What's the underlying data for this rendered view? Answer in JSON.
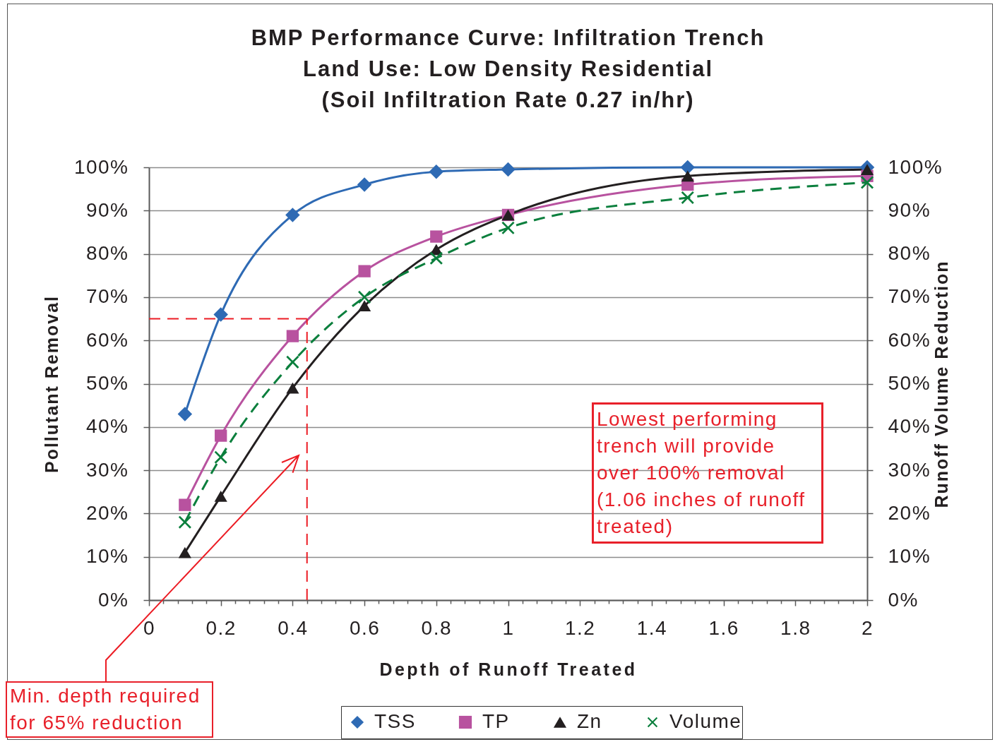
{
  "chart_data": {
    "type": "line",
    "title": "BMP Performance Curve: Infiltration Trench\nLand Use: Low Density Residential\n(Soil Infiltration Rate 0.27 in/hr)",
    "xlabel": "Depth of Runoff Treated",
    "ylabel": "Pollutant Removal",
    "y2label": "Runoff Volume Reduction",
    "x": [
      0.1,
      0.2,
      0.4,
      0.6,
      0.8,
      1,
      1.5,
      2
    ],
    "xlim": [
      0,
      2
    ],
    "xticks": [
      0,
      {
        "value": 0.04,
        "label": null
      },
      {
        "value": 0.08,
        "label": null
      },
      {
        "value": 0.12,
        "label": null
      },
      {
        "value": 0.16,
        "label": null
      },
      0.2,
      {
        "value": 0.24,
        "label": null
      },
      {
        "value": 0.28,
        "label": null
      },
      {
        "value": 0.32,
        "label": null
      },
      {
        "value": 0.36,
        "label": null
      },
      0.4,
      {
        "value": 0.44,
        "label": null
      },
      {
        "value": 0.48,
        "label": null
      },
      {
        "value": 0.52,
        "label": null
      },
      {
        "value": 0.56,
        "label": null
      },
      0.6,
      {
        "value": 0.64,
        "label": null
      },
      {
        "value": 0.68,
        "label": null
      },
      {
        "value": 0.72,
        "label": null
      },
      {
        "value": 0.76,
        "label": null
      },
      0.8,
      {
        "value": 0.84,
        "label": null
      },
      {
        "value": 0.88,
        "label": null
      },
      {
        "value": 0.92,
        "label": null
      },
      {
        "value": 0.96,
        "label": null
      },
      1,
      {
        "value": 1.04,
        "label": null
      },
      {
        "value": 1.08,
        "label": null
      },
      {
        "value": 1.12,
        "label": null
      },
      {
        "value": 1.16,
        "label": null
      },
      1.2,
      {
        "value": 1.24,
        "label": null
      },
      {
        "value": 1.28,
        "label": null
      },
      {
        "value": 1.32,
        "label": null
      },
      {
        "value": 1.36,
        "label": null
      },
      1.4,
      {
        "value": 1.44,
        "label": null
      },
      {
        "value": 1.48,
        "label": null
      },
      {
        "value": 1.52,
        "label": null
      },
      {
        "value": 1.56,
        "label": null
      },
      1.6,
      {
        "value": 1.64,
        "label": null
      },
      {
        "value": 1.68,
        "label": null
      },
      {
        "value": 1.72,
        "label": null
      },
      {
        "value": 1.76,
        "label": null
      },
      1.8,
      {
        "value": 1.84,
        "label": null
      },
      {
        "value": 1.88,
        "label": null
      },
      {
        "value": 1.92,
        "label": null
      },
      {
        "value": 1.96,
        "label": null
      },
      2
    ],
    "ylim": [
      0,
      100
    ],
    "yticks": [
      {
        "value": 0,
        "label": "0%"
      },
      {
        "value": 10,
        "label": "10%"
      },
      {
        "value": 20,
        "label": "20%"
      },
      {
        "value": 30,
        "label": "30%"
      },
      {
        "value": 40,
        "label": "40%"
      },
      {
        "value": 50,
        "label": "50%"
      },
      {
        "value": 60,
        "label": "60%"
      },
      {
        "value": 70,
        "label": "70%"
      },
      {
        "value": 80,
        "label": "80%"
      },
      {
        "value": 90,
        "label": "90%"
      },
      {
        "value": 100,
        "label": "100%"
      }
    ],
    "y2lim": [
      0,
      100
    ],
    "y2ticks": [
      {
        "value": 0,
        "label": "0%"
      },
      {
        "value": 10,
        "label": "10%"
      },
      {
        "value": 20,
        "label": "20%"
      },
      {
        "value": 30,
        "label": "30%"
      },
      {
        "value": 40,
        "label": "40%"
      },
      {
        "value": 50,
        "label": "50%"
      },
      {
        "value": 60,
        "label": "60%"
      },
      {
        "value": 70,
        "label": "70%"
      },
      {
        "value": 80,
        "label": "80%"
      },
      {
        "value": 90,
        "label": "90%"
      },
      {
        "value": 100,
        "label": "100%"
      }
    ],
    "grid": "y",
    "legend": "bottom",
    "series": [
      {
        "name": "TSS",
        "color": "#2e6ab4",
        "marker": "diamond",
        "values": [
          43,
          66,
          89,
          96,
          99,
          99.5,
          100,
          100
        ]
      },
      {
        "name": "TP",
        "color": "#b8529f",
        "marker": "square",
        "values": [
          22,
          38,
          61,
          76,
          84,
          89,
          96,
          98
        ]
      },
      {
        "name": "Zn",
        "color": "#231f20",
        "marker": "triangle",
        "values": [
          11,
          24,
          49,
          68,
          81,
          89,
          98,
          99.5
        ]
      },
      {
        "name": "Volume",
        "color": "#0b7f3d",
        "marker": "cross",
        "line_style": "dashed",
        "axis": "y2",
        "values": [
          18,
          33,
          55,
          70,
          79,
          86,
          93,
          96.5
        ]
      }
    ],
    "ref_lines": [
      {
        "axis": "y",
        "value": 65,
        "color": "#ec1c24",
        "line_style": "dashed"
      },
      {
        "axis": "x",
        "value": 0.44,
        "color": "#ec1c24",
        "line_style": "dashed"
      }
    ],
    "annotations": [
      "Min. depth required for 65% reduction",
      "Lowest performing trench will provide over 100% removal (1.06 inches of runoff treated)"
    ]
  }
}
